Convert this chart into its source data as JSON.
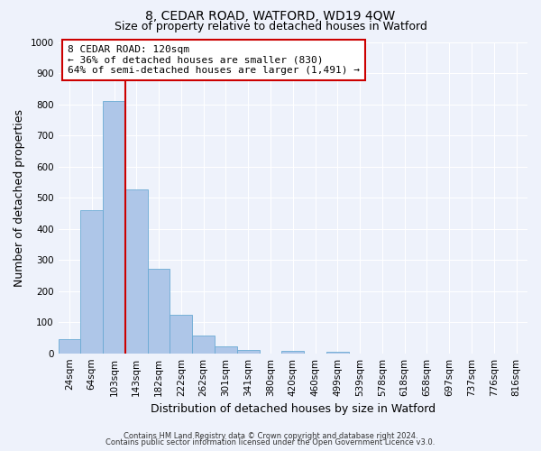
{
  "title": "8, CEDAR ROAD, WATFORD, WD19 4QW",
  "subtitle": "Size of property relative to detached houses in Watford",
  "xlabel": "Distribution of detached houses by size in Watford",
  "ylabel": "Number of detached properties",
  "bar_labels": [
    "24sqm",
    "64sqm",
    "103sqm",
    "143sqm",
    "182sqm",
    "222sqm",
    "262sqm",
    "301sqm",
    "341sqm",
    "380sqm",
    "420sqm",
    "460sqm",
    "499sqm",
    "539sqm",
    "578sqm",
    "618sqm",
    "658sqm",
    "697sqm",
    "737sqm",
    "776sqm",
    "816sqm"
  ],
  "bar_values": [
    46,
    460,
    810,
    525,
    270,
    125,
    57,
    22,
    12,
    0,
    8,
    0,
    5,
    0,
    0,
    0,
    0,
    0,
    0,
    0,
    0
  ],
  "bar_color": "#aec6e8",
  "bar_edge_color": "#6aaad4",
  "vline_color": "#cc0000",
  "vline_x": 2.5,
  "ylim": [
    0,
    1000
  ],
  "yticks": [
    0,
    100,
    200,
    300,
    400,
    500,
    600,
    700,
    800,
    900,
    1000
  ],
  "annotation_text": "8 CEDAR ROAD: 120sqm\n← 36% of detached houses are smaller (830)\n64% of semi-detached houses are larger (1,491) →",
  "annotation_box_color": "#ffffff",
  "annotation_box_edge": "#cc0000",
  "footer1": "Contains HM Land Registry data © Crown copyright and database right 2024.",
  "footer2": "Contains public sector information licensed under the Open Government Licence v3.0.",
  "background_color": "#eef2fb",
  "grid_color": "#ffffff",
  "title_fontsize": 10,
  "subtitle_fontsize": 9,
  "axis_label_fontsize": 9,
  "tick_fontsize": 7.5,
  "annotation_fontsize": 8,
  "footer_fontsize": 6
}
